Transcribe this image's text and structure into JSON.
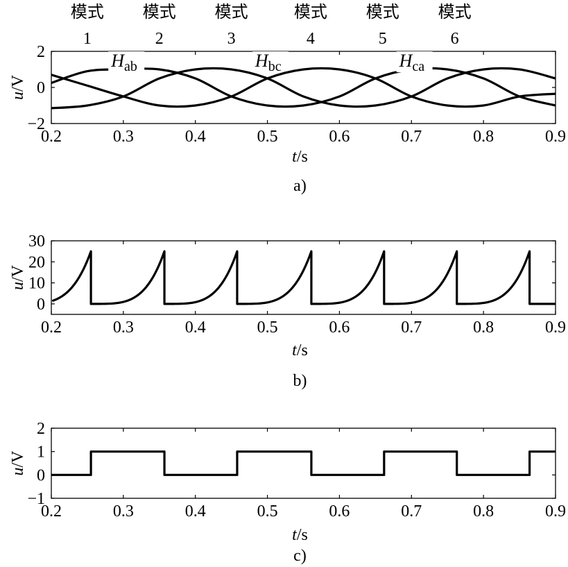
{
  "mode_header": {
    "word": "模式",
    "modes": [
      {
        "word": "模式",
        "num": "1",
        "x": 0.25
      },
      {
        "word": "模式",
        "num": "2",
        "x": 0.35
      },
      {
        "word": "模式",
        "num": "3",
        "x": 0.45
      },
      {
        "word": "模式",
        "num": "4",
        "x": 0.56
      },
      {
        "word": "模式",
        "num": "5",
        "x": 0.66
      },
      {
        "word": "模式",
        "num": "6",
        "x": 0.76
      }
    ]
  },
  "chart_data": [
    {
      "type": "line",
      "caption": "a)",
      "xlabel": "t/s",
      "ylabel": "u/V",
      "xlim": [
        0.2,
        0.9
      ],
      "ylim": [
        -2,
        2
      ],
      "xticks": [
        "0.2",
        "0.3",
        "0.4",
        "0.5",
        "0.6",
        "0.7",
        "0.8",
        "0.9"
      ],
      "yticks": [
        "2",
        "0",
        "−2"
      ],
      "series": [
        {
          "name": "H_ab",
          "label_main": "H",
          "label_sub": "ab",
          "label_x": 0.283,
          "label_y": 1.15,
          "x": [
            0.2,
            0.25,
            0.3,
            0.35,
            0.4,
            0.45,
            0.5,
            0.55,
            0.6,
            0.65,
            0.7,
            0.75,
            0.8,
            0.85,
            0.9
          ],
          "y": [
            0.25,
            0.9,
            1.0,
            1.0,
            0.5,
            -0.5,
            -1.0,
            -1.0,
            -0.5,
            0.5,
            1.0,
            1.0,
            0.5,
            -0.5,
            -1.0
          ]
        },
        {
          "name": "H_bc",
          "label_main": "H",
          "label_sub": "bc",
          "label_x": 0.483,
          "label_y": 1.15,
          "x": [
            0.2,
            0.25,
            0.3,
            0.35,
            0.4,
            0.45,
            0.5,
            0.55,
            0.6,
            0.65,
            0.7,
            0.75,
            0.8,
            0.85,
            0.9
          ],
          "y": [
            -1.15,
            -1.0,
            -0.5,
            0.5,
            1.0,
            1.0,
            0.5,
            -0.5,
            -1.0,
            -1.0,
            -0.5,
            0.5,
            1.0,
            1.0,
            0.5
          ]
        },
        {
          "name": "H_ca",
          "label_main": "H",
          "label_sub": "ca",
          "label_x": 0.683,
          "label_y": 1.15,
          "x": [
            0.2,
            0.25,
            0.3,
            0.35,
            0.4,
            0.45,
            0.5,
            0.55,
            0.6,
            0.65,
            0.7,
            0.75,
            0.8,
            0.85,
            0.9
          ],
          "y": [
            0.7,
            0.1,
            -0.5,
            -1.0,
            -1.0,
            -0.5,
            0.5,
            1.0,
            1.0,
            0.5,
            -0.5,
            -1.0,
            -1.0,
            -0.5,
            -0.35
          ]
        }
      ]
    },
    {
      "type": "line",
      "caption": "b)",
      "xlabel": "t/s",
      "ylabel": "u/V",
      "xlim": [
        0.2,
        0.9
      ],
      "ylim": [
        -5,
        30
      ],
      "xticks": [
        "0.2",
        "0.3",
        "0.4",
        "0.5",
        "0.6",
        "0.7",
        "0.8",
        "0.9"
      ],
      "yticks": [
        "30",
        "20",
        "10",
        "0"
      ],
      "series": [
        {
          "name": "sawtooth",
          "ramp_starts": [
            0.15,
            0.255,
            0.357,
            0.458,
            0.561,
            0.662,
            0.763
          ],
          "peaks": [
            0.255,
            0.357,
            0.458,
            0.561,
            0.662,
            0.763,
            0.864
          ],
          "peak_value": 25,
          "base_value": 0
        }
      ]
    },
    {
      "type": "line",
      "caption": "c)",
      "xlabel": "t/s",
      "ylabel": "u/V",
      "xlim": [
        0.2,
        0.9
      ],
      "ylim": [
        -1,
        2
      ],
      "xticks": [
        "0.2",
        "0.3",
        "0.4",
        "0.5",
        "0.6",
        "0.7",
        "0.8",
        "0.9"
      ],
      "yticks": [
        "2",
        "1",
        "0",
        "−1"
      ],
      "series": [
        {
          "name": "square",
          "x": [
            0.2,
            0.255,
            0.255,
            0.357,
            0.357,
            0.458,
            0.458,
            0.561,
            0.561,
            0.662,
            0.662,
            0.763,
            0.763,
            0.864,
            0.864,
            0.9
          ],
          "y": [
            0,
            0,
            1,
            1,
            0,
            0,
            1,
            1,
            0,
            0,
            1,
            1,
            0,
            0,
            1,
            1
          ]
        }
      ]
    }
  ]
}
